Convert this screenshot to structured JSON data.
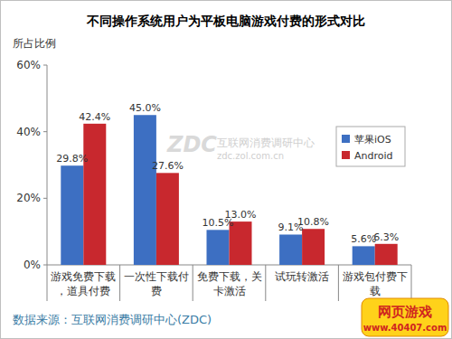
{
  "chart_data": {
    "type": "bar",
    "title": "不同操作系统用户为平板电脑游戏付费的形式对比",
    "y_label": "所占比例",
    "categories": [
      "游戏免费下载，道具付费",
      "一次性下载付费",
      "免费下载，关卡激活",
      "试玩转激活",
      "游戏包付费下载"
    ],
    "series": [
      {
        "name": "苹果iOS",
        "color": "#3d6fc2",
        "values": [
          29.8,
          45.0,
          10.5,
          9.1,
          5.6
        ],
        "value_labels": [
          "29.8%",
          "45.0%",
          "10.5%",
          "9.1%",
          "5.6%"
        ]
      },
      {
        "name": "Android",
        "color": "#c8282e",
        "values": [
          42.4,
          27.6,
          13.0,
          10.8,
          6.3
        ],
        "value_labels": [
          "42.4%",
          "27.6%",
          "13.0%",
          "10.8%",
          "6.3%"
        ]
      }
    ],
    "ylim": [
      0,
      60
    ],
    "yticks": [
      {
        "value": 0,
        "label": "0%"
      },
      {
        "value": 20,
        "label": "20%"
      },
      {
        "value": 40,
        "label": "40%"
      },
      {
        "value": 60,
        "label": "60%"
      }
    ],
    "grid": false,
    "data_labels": true,
    "legend": "right",
    "source": "数据来源：互联网消费调研中心(ZDC)",
    "annotations": [
      "ZDC",
      "互联网消费调研中心",
      "zdc.zol.com.cn",
      "网页游戏",
      "www.40407.com"
    ]
  }
}
